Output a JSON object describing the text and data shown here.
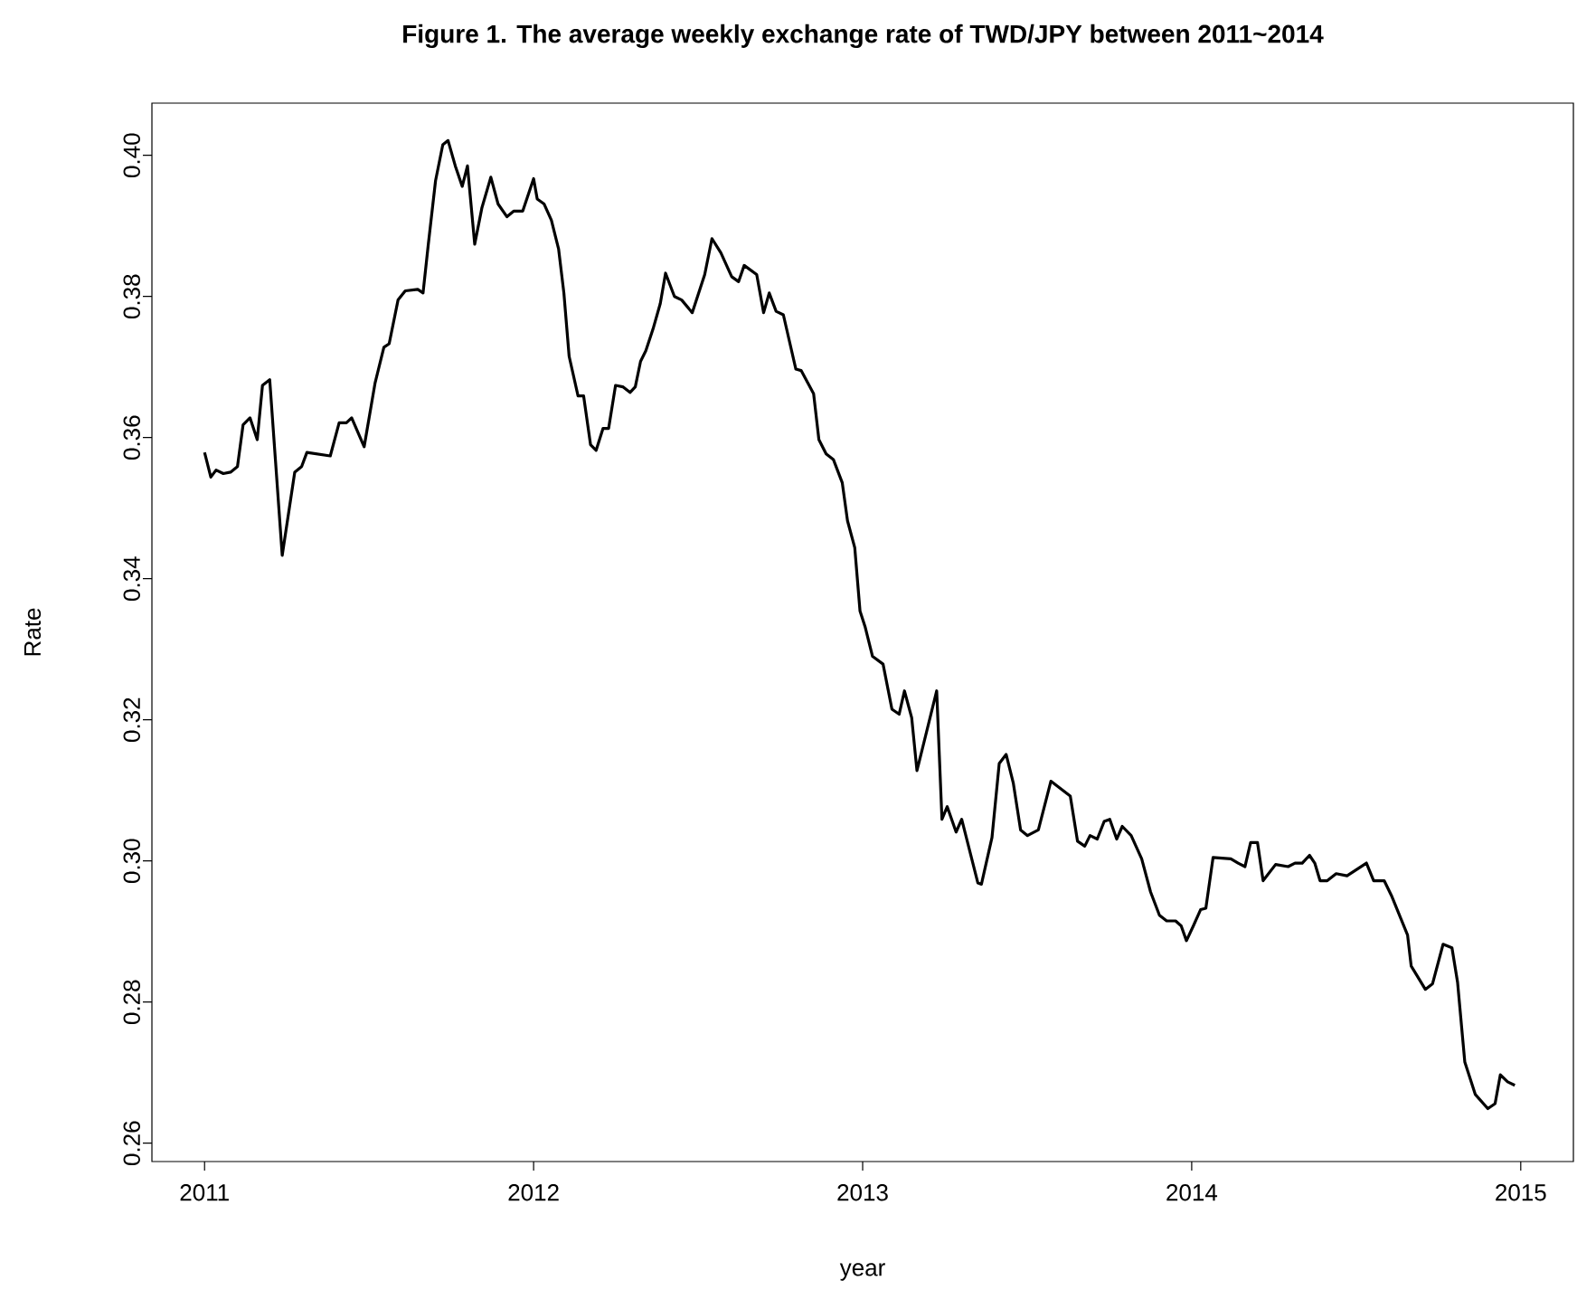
{
  "chart_data": {
    "type": "line",
    "title": "Figure 1.  The average weekly exchange rate of TWD/JPY between 2011~2014",
    "xlabel": "year",
    "ylabel": "Rate",
    "xlim": [
      2010.84,
      2015.16
    ],
    "ylim": [
      0.2574,
      0.4074
    ],
    "xticks": [
      2011,
      2012,
      2013,
      2014,
      2015
    ],
    "yticks": [
      {
        "value": 0.26,
        "label": "0.26"
      },
      {
        "value": 0.28,
        "label": "0.28"
      },
      {
        "value": 0.3,
        "label": "0.30"
      },
      {
        "value": 0.32,
        "label": "0.32"
      },
      {
        "value": 0.34,
        "label": "0.34"
      },
      {
        "value": 0.36,
        "label": "0.36"
      },
      {
        "value": 0.38,
        "label": "0.38"
      },
      {
        "value": 0.4,
        "label": "0.40"
      }
    ],
    "grid": false,
    "marker": "none",
    "line_style": "solid",
    "series": [
      {
        "color": "#000000",
        "x": [
          2011.0,
          2011.019,
          2011.035,
          2011.057,
          2011.079,
          2011.1,
          2011.117,
          2011.138,
          2011.16,
          2011.176,
          2011.198,
          2011.236,
          2011.274,
          2011.295,
          2011.311,
          2011.382,
          2011.409,
          2011.431,
          2011.447,
          2011.485,
          2011.518,
          2011.545,
          2011.561,
          2011.588,
          2011.61,
          2011.648,
          2011.664,
          2011.68,
          2011.702,
          2011.724,
          2011.74,
          2011.762,
          2011.783,
          2011.799,
          2011.821,
          2011.843,
          2011.87,
          2011.892,
          2011.919,
          2011.94,
          2011.967,
          2012.0,
          2012.011,
          2012.032,
          2012.054,
          2012.076,
          2012.092,
          2012.108,
          2012.135,
          2012.152,
          2012.173,
          2012.19,
          2012.211,
          2012.228,
          2012.249,
          2012.271,
          2012.293,
          2012.309,
          2012.325,
          2012.341,
          2012.363,
          2012.385,
          2012.401,
          2012.428,
          2012.45,
          2012.482,
          2012.52,
          2012.542,
          2012.569,
          2012.602,
          2012.623,
          2012.64,
          2012.678,
          2012.699,
          2012.716,
          2012.737,
          2012.759,
          2012.797,
          2012.813,
          2012.851,
          2012.867,
          2012.889,
          2012.911,
          2012.938,
          2012.954,
          2012.976,
          2012.992,
          2013.008,
          2013.03,
          2013.062,
          2013.089,
          2013.111,
          2013.127,
          2013.149,
          2013.165,
          2013.225,
          2013.241,
          2013.257,
          2013.284,
          2013.301,
          2013.35,
          2013.361,
          2013.393,
          2013.415,
          2013.436,
          2013.458,
          2013.48,
          2013.501,
          2013.534,
          2013.572,
          2013.631,
          2013.653,
          2013.675,
          2013.691,
          2013.713,
          2013.734,
          2013.751,
          2013.772,
          2013.789,
          2013.816,
          2013.848,
          2013.875,
          2013.902,
          2013.924,
          2013.951,
          2013.968,
          2013.984,
          2014.005,
          2014.027,
          2014.043,
          2014.065,
          2014.119,
          2014.141,
          2014.162,
          2014.179,
          2014.2,
          2014.217,
          2014.255,
          2014.293,
          2014.314,
          2014.336,
          2014.358,
          2014.374,
          2014.39,
          2014.412,
          2014.439,
          2014.472,
          2014.531,
          2014.553,
          2014.585,
          2014.607,
          2014.656,
          2014.667,
          2014.71,
          2014.732,
          2014.764,
          2014.791,
          2014.808,
          2014.83,
          2014.862,
          2014.9,
          2014.922,
          2014.938,
          2014.96,
          2014.982
        ],
        "values": [
          0.3579,
          0.3544,
          0.3554,
          0.3549,
          0.3551,
          0.3559,
          0.3618,
          0.3628,
          0.3597,
          0.3674,
          0.3682,
          0.3433,
          0.3551,
          0.3559,
          0.3579,
          0.3574,
          0.3621,
          0.3621,
          0.3628,
          0.3587,
          0.3677,
          0.3728,
          0.3733,
          0.3795,
          0.3808,
          0.381,
          0.3805,
          0.3874,
          0.3964,
          0.4015,
          0.4021,
          0.3985,
          0.3956,
          0.3985,
          0.3874,
          0.3926,
          0.3969,
          0.3931,
          0.3913,
          0.3921,
          0.3921,
          0.3967,
          0.3938,
          0.3931,
          0.3908,
          0.3867,
          0.3805,
          0.3715,
          0.3659,
          0.3659,
          0.359,
          0.3582,
          0.3613,
          0.3613,
          0.3674,
          0.3672,
          0.3664,
          0.3672,
          0.3708,
          0.3723,
          0.3754,
          0.379,
          0.3833,
          0.38,
          0.3795,
          0.3777,
          0.3831,
          0.3882,
          0.3862,
          0.3828,
          0.3821,
          0.3844,
          0.3831,
          0.3777,
          0.3805,
          0.3779,
          0.3774,
          0.3697,
          0.3695,
          0.3662,
          0.3597,
          0.3577,
          0.3569,
          0.3536,
          0.3482,
          0.3444,
          0.3354,
          0.3331,
          0.329,
          0.3279,
          0.3215,
          0.3208,
          0.3241,
          0.3203,
          0.3128,
          0.3241,
          0.3059,
          0.3077,
          0.3041,
          0.3059,
          0.2969,
          0.2967,
          0.3033,
          0.3138,
          0.3151,
          0.311,
          0.3044,
          0.3036,
          0.3044,
          0.3113,
          0.3092,
          0.3028,
          0.3021,
          0.3036,
          0.3031,
          0.3056,
          0.3059,
          0.3031,
          0.3049,
          0.3036,
          0.3003,
          0.2956,
          0.2923,
          0.2915,
          0.2915,
          0.2908,
          0.2887,
          0.2908,
          0.2931,
          0.2933,
          0.3005,
          0.3003,
          0.2997,
          0.2992,
          0.3026,
          0.3026,
          0.2972,
          0.2995,
          0.2992,
          0.2997,
          0.2997,
          0.3008,
          0.2997,
          0.2972,
          0.2972,
          0.2982,
          0.2979,
          0.2997,
          0.2972,
          0.2972,
          0.2951,
          0.2895,
          0.2851,
          0.2818,
          0.2826,
          0.2882,
          0.2877,
          0.2828,
          0.2715,
          0.2669,
          0.2649,
          0.2656,
          0.2697,
          0.2687,
          0.2682
        ]
      }
    ]
  }
}
